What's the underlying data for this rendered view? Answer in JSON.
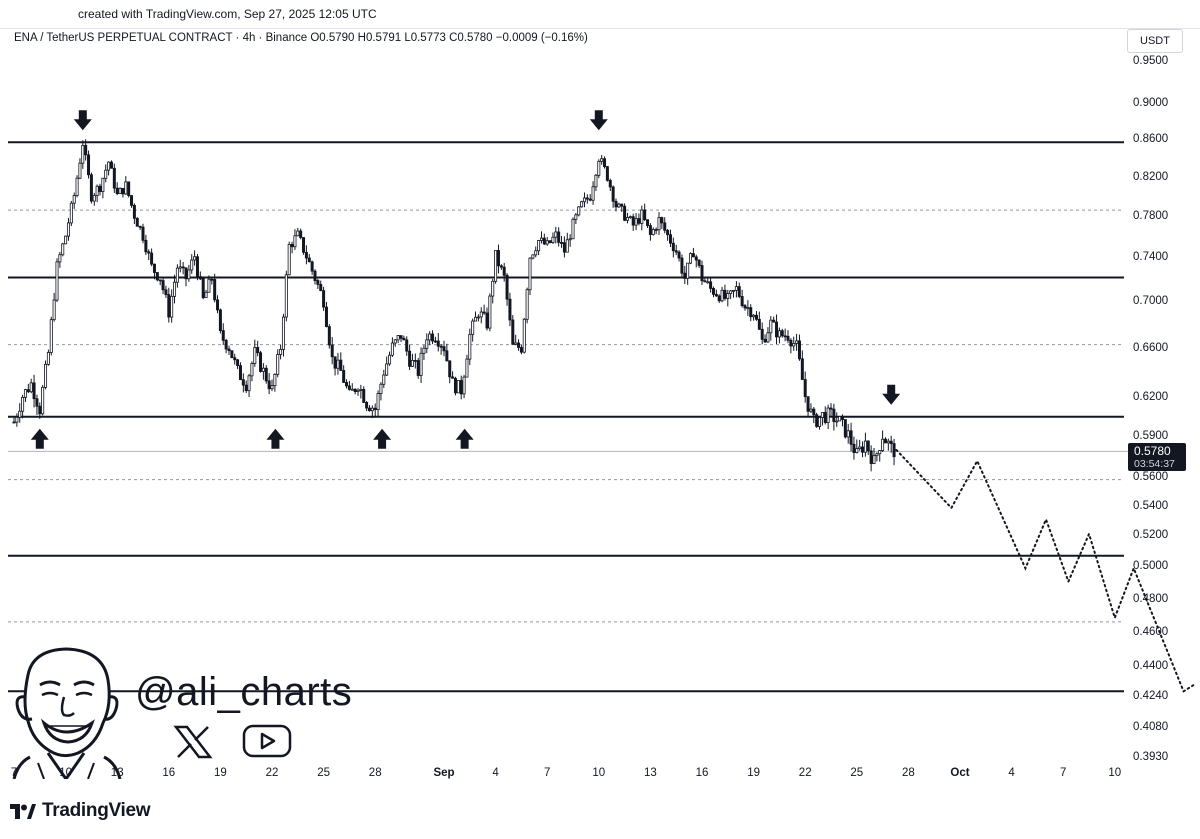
{
  "header": {
    "created_line": "created with TradingView.com, Sep 27, 2025 12:05 UTC",
    "symbol_line": "ENA / TetherUS PERPETUAL CONTRACT · 4h · Binance  O0.5790  H0.5791  L0.5773  C0.5780  −0.0009 (−0.16%)",
    "currency": "USDT"
  },
  "price_tag": {
    "price": "0.5780",
    "countdown": "03:54:37"
  },
  "watermark": {
    "handle": "@ali_charts",
    "x_icon": "x-logo-icon",
    "yt_icon": "youtube-play-icon",
    "avatar": "cartoon-face-avatar"
  },
  "footer": {
    "brand": "TradingView",
    "logo_icon": "tradingview-logo-icon"
  },
  "chart_data": {
    "type": "candlestick",
    "timeframe": "4h",
    "y_axis_labels": [
      "0.9500",
      "0.9000",
      "0.8600",
      "0.8200",
      "0.7800",
      "0.7400",
      "0.7000",
      "0.6600",
      "0.6200",
      "0.5900",
      "0.5600",
      "0.5400",
      "0.5200",
      "0.5000",
      "0.4800",
      "0.4600",
      "0.4400",
      "0.4240",
      "0.4080",
      "0.3930"
    ],
    "x_axis_labels": [
      {
        "label": "7",
        "day": 0
      },
      {
        "label": "10",
        "day": 3
      },
      {
        "label": "13",
        "day": 6
      },
      {
        "label": "16",
        "day": 9
      },
      {
        "label": "19",
        "day": 12
      },
      {
        "label": "22",
        "day": 15
      },
      {
        "label": "25",
        "day": 18
      },
      {
        "label": "28",
        "day": 21
      },
      {
        "label": "Sep",
        "day": 25,
        "bold": true
      },
      {
        "label": "4",
        "day": 28
      },
      {
        "label": "7",
        "day": 31
      },
      {
        "label": "10",
        "day": 34
      },
      {
        "label": "13",
        "day": 37
      },
      {
        "label": "16",
        "day": 40
      },
      {
        "label": "19",
        "day": 43
      },
      {
        "label": "22",
        "day": 46
      },
      {
        "label": "25",
        "day": 49
      },
      {
        "label": "28",
        "day": 52
      },
      {
        "label": "Oct",
        "day": 55,
        "bold": true
      },
      {
        "label": "4",
        "day": 58
      },
      {
        "label": "7",
        "day": 61
      },
      {
        "label": "10",
        "day": 64
      }
    ],
    "solid_levels": [
      0.8555,
      0.7205,
      0.604,
      0.506,
      0.426
    ],
    "dashed_levels": [
      0.785,
      0.662,
      0.5575,
      0.4655
    ],
    "last_price": 0.578,
    "price_path": [
      [
        0,
        0.6
      ],
      [
        0.5,
        0.62
      ],
      [
        1,
        0.63
      ],
      [
        1.5,
        0.61
      ],
      [
        2,
        0.655
      ],
      [
        2.5,
        0.73
      ],
      [
        3,
        0.76
      ],
      [
        3.5,
        0.8
      ],
      [
        4,
        0.855
      ],
      [
        4.5,
        0.8
      ],
      [
        5,
        0.81
      ],
      [
        5.5,
        0.835
      ],
      [
        6,
        0.8
      ],
      [
        6.5,
        0.81
      ],
      [
        7,
        0.78
      ],
      [
        7.5,
        0.76
      ],
      [
        8,
        0.73
      ],
      [
        8.5,
        0.72
      ],
      [
        9,
        0.69
      ],
      [
        9.5,
        0.73
      ],
      [
        10,
        0.72
      ],
      [
        10.5,
        0.74
      ],
      [
        11,
        0.7
      ],
      [
        11.5,
        0.72
      ],
      [
        12,
        0.67
      ],
      [
        12.5,
        0.66
      ],
      [
        13,
        0.64
      ],
      [
        13.5,
        0.63
      ],
      [
        14,
        0.655
      ],
      [
        14.5,
        0.64
      ],
      [
        15,
        0.625
      ],
      [
        15.5,
        0.66
      ],
      [
        16,
        0.75
      ],
      [
        16.5,
        0.76
      ],
      [
        17,
        0.74
      ],
      [
        17.5,
        0.72
      ],
      [
        18,
        0.7
      ],
      [
        18.5,
        0.65
      ],
      [
        19,
        0.64
      ],
      [
        19.5,
        0.62
      ],
      [
        20,
        0.63
      ],
      [
        20.5,
        0.615
      ],
      [
        21,
        0.61
      ],
      [
        21.5,
        0.64
      ],
      [
        22,
        0.66
      ],
      [
        22.5,
        0.67
      ],
      [
        23,
        0.65
      ],
      [
        23.5,
        0.64
      ],
      [
        24,
        0.67
      ],
      [
        24.5,
        0.67
      ],
      [
        25,
        0.66
      ],
      [
        25.5,
        0.63
      ],
      [
        26,
        0.625
      ],
      [
        26.5,
        0.67
      ],
      [
        27,
        0.69
      ],
      [
        27.5,
        0.68
      ],
      [
        28,
        0.74
      ],
      [
        28.5,
        0.72
      ],
      [
        29,
        0.66
      ],
      [
        29.5,
        0.66
      ],
      [
        30,
        0.74
      ],
      [
        30.5,
        0.755
      ],
      [
        31,
        0.75
      ],
      [
        31.5,
        0.76
      ],
      [
        32,
        0.745
      ],
      [
        32.5,
        0.77
      ],
      [
        33,
        0.79
      ],
      [
        33.5,
        0.8
      ],
      [
        34,
        0.84
      ],
      [
        34.5,
        0.82
      ],
      [
        35,
        0.79
      ],
      [
        35.5,
        0.78
      ],
      [
        36,
        0.77
      ],
      [
        36.5,
        0.78
      ],
      [
        37,
        0.76
      ],
      [
        37.5,
        0.775
      ],
      [
        38,
        0.76
      ],
      [
        38.5,
        0.745
      ],
      [
        39,
        0.72
      ],
      [
        39.5,
        0.745
      ],
      [
        40,
        0.72
      ],
      [
        40.5,
        0.71
      ],
      [
        41,
        0.705
      ],
      [
        41.5,
        0.7
      ],
      [
        42,
        0.71
      ],
      [
        42.5,
        0.695
      ],
      [
        43,
        0.69
      ],
      [
        43.5,
        0.665
      ],
      [
        44,
        0.68
      ],
      [
        44.5,
        0.67
      ],
      [
        45,
        0.67
      ],
      [
        45.5,
        0.66
      ],
      [
        46,
        0.62
      ],
      [
        46.5,
        0.6
      ],
      [
        47,
        0.605
      ],
      [
        47.5,
        0.605
      ],
      [
        48,
        0.6
      ],
      [
        48.5,
        0.59
      ],
      [
        49,
        0.575
      ],
      [
        49.5,
        0.585
      ],
      [
        50,
        0.57
      ],
      [
        50.5,
        0.59
      ],
      [
        51,
        0.58
      ],
      [
        51.3,
        0.578
      ]
    ],
    "projection_path": [
      [
        51.3,
        0.579
      ],
      [
        54.5,
        0.538
      ],
      [
        56,
        0.571
      ],
      [
        58.8,
        0.498
      ],
      [
        60,
        0.53
      ],
      [
        61.3,
        0.49
      ],
      [
        62.5,
        0.52
      ],
      [
        64,
        0.468
      ],
      [
        65.1,
        0.498
      ],
      [
        68,
        0.426
      ],
      [
        68.7,
        0.43
      ]
    ],
    "down_arrows": [
      {
        "day": 4,
        "price": 0.8555
      },
      {
        "day": 34,
        "price": 0.8555
      },
      {
        "day": 51,
        "price": 0.604
      }
    ],
    "up_arrows": [
      {
        "day": 1.5,
        "price": 0.604
      },
      {
        "day": 15.2,
        "price": 0.604
      },
      {
        "day": 21.4,
        "price": 0.604
      },
      {
        "day": 26.2,
        "price": 0.604
      }
    ]
  }
}
